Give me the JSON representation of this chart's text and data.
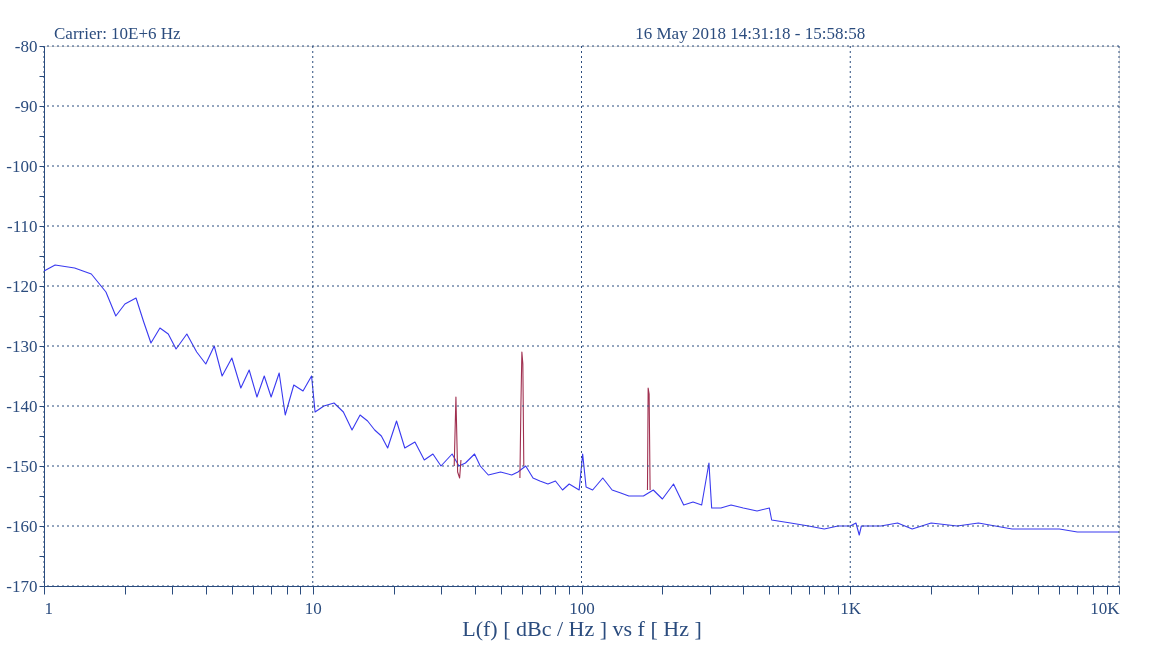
{
  "chart_data": {
    "type": "line",
    "xlabel": "L(f)  [ dBc / Hz ]  vs  f  [ Hz ]",
    "annotations": [
      "Carrier: 10E+6 Hz",
      "16 May 2018  14:31:18 - 15:58:58"
    ],
    "log": "x",
    "grid": true,
    "marker": "none",
    "line_style": "solid",
    "xlim": [
      1,
      10000
    ],
    "ylim": [
      -170,
      -80
    ],
    "xticks": [
      1,
      {
        "value": 2,
        "label": null
      },
      {
        "value": 3,
        "label": null
      },
      {
        "value": 4,
        "label": null
      },
      {
        "value": 5,
        "label": null
      },
      {
        "value": 6,
        "label": null
      },
      {
        "value": 7,
        "label": null
      },
      {
        "value": 8,
        "label": null
      },
      {
        "value": 9,
        "label": null
      },
      10,
      {
        "value": 20,
        "label": null
      },
      {
        "value": 30,
        "label": null
      },
      {
        "value": 40,
        "label": null
      },
      {
        "value": 50,
        "label": null
      },
      {
        "value": 60,
        "label": null
      },
      {
        "value": 70,
        "label": null
      },
      {
        "value": 80,
        "label": null
      },
      {
        "value": 90,
        "label": null
      },
      100,
      {
        "value": 200,
        "label": null
      },
      {
        "value": 300,
        "label": null
      },
      {
        "value": 400,
        "label": null
      },
      {
        "value": 500,
        "label": null
      },
      {
        "value": 600,
        "label": null
      },
      {
        "value": 700,
        "label": null
      },
      {
        "value": 800,
        "label": null
      },
      {
        "value": 900,
        "label": null
      },
      {
        "value": 1000,
        "label": "1K"
      },
      {
        "value": 2000,
        "label": null
      },
      {
        "value": 3000,
        "label": null
      },
      {
        "value": 4000,
        "label": null
      },
      {
        "value": 5000,
        "label": null
      },
      {
        "value": 6000,
        "label": null
      },
      {
        "value": 7000,
        "label": null
      },
      {
        "value": 8000,
        "label": null
      },
      {
        "value": 9000,
        "label": null
      },
      {
        "value": 10000,
        "label": "10K"
      }
    ],
    "yticks": [
      -80,
      {
        "value": -85,
        "label": null
      },
      -90,
      {
        "value": -95,
        "label": null
      },
      -100,
      {
        "value": -105,
        "label": null
      },
      -110,
      {
        "value": -115,
        "label": null
      },
      -120,
      {
        "value": -125,
        "label": null
      },
      -130,
      {
        "value": -135,
        "label": null
      },
      -140,
      {
        "value": -145,
        "label": null
      },
      -150,
      {
        "value": -155,
        "label": null
      },
      -160,
      {
        "value": -165,
        "label": null
      },
      -170
    ],
    "series": [
      {
        "color": "#3a3af0",
        "x": [
          1,
          1.1,
          1.3,
          1.5,
          1.7,
          1.85,
          2.0,
          2.2,
          2.35,
          2.5,
          2.7,
          2.9,
          3.1,
          3.4,
          3.7,
          4.0,
          4.3,
          4.6,
          5.0,
          5.4,
          5.8,
          6.2,
          6.6,
          7.0,
          7.5,
          7.9,
          8.5,
          9.2,
          9.9,
          10.2,
          11,
          12,
          13,
          14,
          15,
          16,
          17,
          18,
          19,
          20.5,
          22,
          24,
          26,
          28,
          30,
          33,
          35,
          37,
          40,
          42,
          45,
          50,
          55,
          58,
          62,
          66,
          70,
          75,
          80,
          85,
          90,
          98,
          101,
          104,
          110,
          120,
          130,
          140,
          150,
          170,
          185,
          200,
          220,
          240,
          260,
          280,
          298,
          305,
          330,
          360,
          400,
          450,
          500,
          510,
          600,
          700,
          800,
          900,
          1000,
          1050,
          1080,
          1100,
          1300,
          1500,
          1700,
          2000,
          2500,
          3000,
          4000,
          5000,
          6000,
          7000,
          8000,
          9000,
          10000
        ],
        "values": [
          -117.5,
          -116.5,
          -117,
          -118,
          -121,
          -125,
          -123,
          -122,
          -126,
          -129.5,
          -127,
          -128,
          -130.5,
          -128,
          -131,
          -133,
          -130,
          -135,
          -132,
          -137,
          -134,
          -138.5,
          -135,
          -138.5,
          -134.5,
          -141.5,
          -136.5,
          -137.5,
          -135,
          -141,
          -140,
          -139.5,
          -141,
          -144,
          -141.5,
          -142.5,
          -144,
          -145,
          -147,
          -142.5,
          -147,
          -146,
          -149,
          -148,
          -150,
          -148,
          -150,
          -149.5,
          -148,
          -150,
          -151.5,
          -151,
          -151.5,
          -151,
          -150,
          -152,
          -152.5,
          -153,
          -152.5,
          -154,
          -153,
          -154,
          -148,
          -153.5,
          -154,
          -152,
          -154,
          -154.5,
          -155,
          -155,
          -154,
          -155.5,
          -153,
          -156.5,
          -156,
          -156.5,
          -149.5,
          -157,
          -157,
          -156.5,
          -157,
          -157.5,
          -157,
          -159,
          -159.5,
          -160,
          -160.5,
          -160,
          -160,
          -159.5,
          -161.5,
          -160,
          -160,
          -159.5,
          -160.5,
          -159.5,
          -160,
          -159.5,
          -160.5,
          -160.5,
          -160.5,
          -161,
          -161,
          -161,
          -161
        ]
      },
      {
        "color": "#a03050",
        "x": [
          33.6,
          34.1,
          34.6,
          35.2,
          35.6,
          47,
          59,
          59.5,
          60,
          60.5,
          61,
          120,
          176,
          177,
          178.5,
          180
        ],
        "values": [
          -150,
          -138.5,
          -151,
          -152,
          -149,
          null,
          -152,
          -140,
          -131,
          -133,
          -150,
          null,
          -154,
          -137,
          -138,
          -154
        ]
      }
    ]
  }
}
